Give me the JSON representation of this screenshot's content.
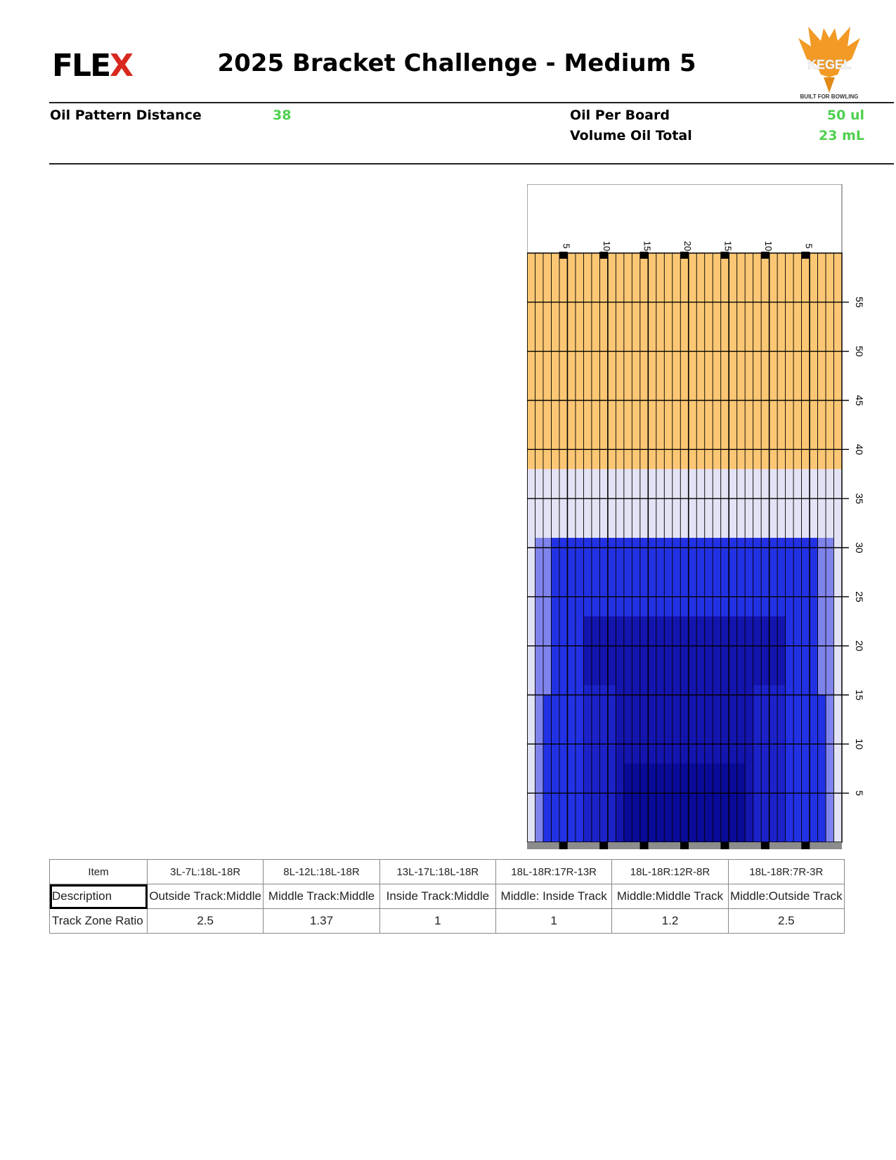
{
  "header": {
    "brand_prefix": "FLE",
    "brand_x": "X",
    "title": "2025 Bracket Challenge - Medium 5",
    "kegel_logo_text": "KEGEL",
    "kegel_tagline": "BUILT FOR BOWLING"
  },
  "stats": {
    "oil_pattern_distance_label": "Oil Pattern Distance",
    "oil_pattern_distance_value": "38",
    "oil_per_board_label": "Oil Per Board",
    "oil_per_board_value": "50 ul",
    "volume_oil_total_label": "Volume Oil Total",
    "volume_oil_total_value": "23 mL"
  },
  "colors": {
    "dry": "#fcc774",
    "light": "#e3e3f6",
    "light2": "#d2d2f2",
    "mid1": "#c4c4ee",
    "mid2": "#7f84ec",
    "mid3": "#2331e4",
    "dark1": "#1c22c8",
    "dark2": "#1414ae",
    "dark3": "#0a0a98",
    "green_value": "#4ed04e",
    "brand_red": "#d8281f",
    "kegel_orange": "#f29a25"
  },
  "chart_data": {
    "type": "heatmap",
    "board_labels": [
      "5",
      "10",
      "15",
      "20",
      "15",
      "10",
      "5"
    ],
    "distance_labels": [
      "5",
      "10",
      "15",
      "20",
      "25",
      "30",
      "35",
      "40",
      "45",
      "50",
      "55"
    ],
    "boards": 39,
    "lane_length_ft": 60,
    "pattern_length_ft": 38,
    "zones": [
      {
        "boards": [
          1,
          39
        ],
        "ft": [
          0,
          38
        ],
        "level": "light"
      },
      {
        "boards": [
          2,
          38
        ],
        "ft": [
          0,
          31
        ],
        "level": "mid2"
      },
      {
        "boards": [
          3,
          37
        ],
        "ft": [
          0,
          15
        ],
        "level": "mid3"
      },
      {
        "boards": [
          4,
          36
        ],
        "ft": [
          0,
          31
        ],
        "level": "mid3"
      },
      {
        "boards": [
          8,
          32
        ],
        "ft": [
          0,
          16
        ],
        "level": "dark1"
      },
      {
        "boards": [
          8,
          32
        ],
        "ft": [
          16,
          23
        ],
        "level": "dark2"
      },
      {
        "boards": [
          12,
          28
        ],
        "ft": [
          0,
          16
        ],
        "level": "dark2"
      },
      {
        "boards": [
          13,
          27
        ],
        "ft": [
          0,
          8
        ],
        "level": "dark3"
      }
    ]
  },
  "table": {
    "header": [
      "Item",
      "3L-7L:18L-18R",
      "8L-12L:18L-18R",
      "13L-17L:18L-18R",
      "18L-18R:17R-13R",
      "18L-18R:12R-8R",
      "18L-18R:7R-3R"
    ],
    "rows": [
      [
        "Description",
        "Outside Track:Middle",
        "Middle Track:Middle",
        "Inside Track:Middle",
        "Middle: Inside Track",
        "Middle:Middle Track",
        "Middle:Outside Track"
      ],
      [
        "Track Zone Ratio",
        "2.5",
        "1.37",
        "1",
        "1",
        "1.2",
        "2.5"
      ]
    ]
  }
}
